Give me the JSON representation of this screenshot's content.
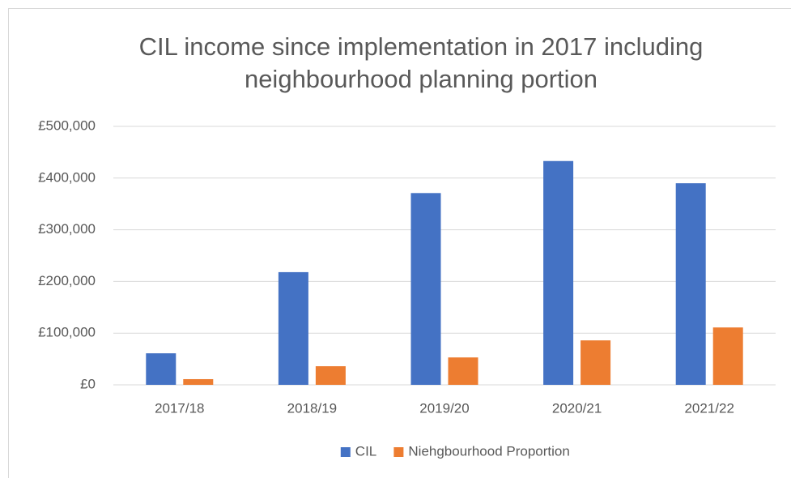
{
  "chart_data": {
    "type": "bar",
    "title": "CIL income since implementation in 2017 including neighbourhood planning portion",
    "categories": [
      "2017/18",
      "2018/19",
      "2019/20",
      "2020/21",
      "2021/22"
    ],
    "series": [
      {
        "name": "CIL",
        "color": "#4472c4",
        "values": [
          61000,
          218000,
          371000,
          433000,
          390000
        ]
      },
      {
        "name": "Niehgbourhood Proportion",
        "color": "#ed7d31",
        "values": [
          11000,
          36000,
          53000,
          86000,
          111000
        ]
      }
    ],
    "ylim": [
      0,
      500000
    ],
    "yticks": [
      {
        "value": 0,
        "label": "£0"
      },
      {
        "value": 100000,
        "label": "£100,000"
      },
      {
        "value": 200000,
        "label": "£200,000"
      },
      {
        "value": 300000,
        "label": "£300,000"
      },
      {
        "value": 400000,
        "label": "£400,000"
      },
      {
        "value": 500000,
        "label": "£500,000"
      }
    ],
    "grid": true,
    "legend": "bottom"
  }
}
